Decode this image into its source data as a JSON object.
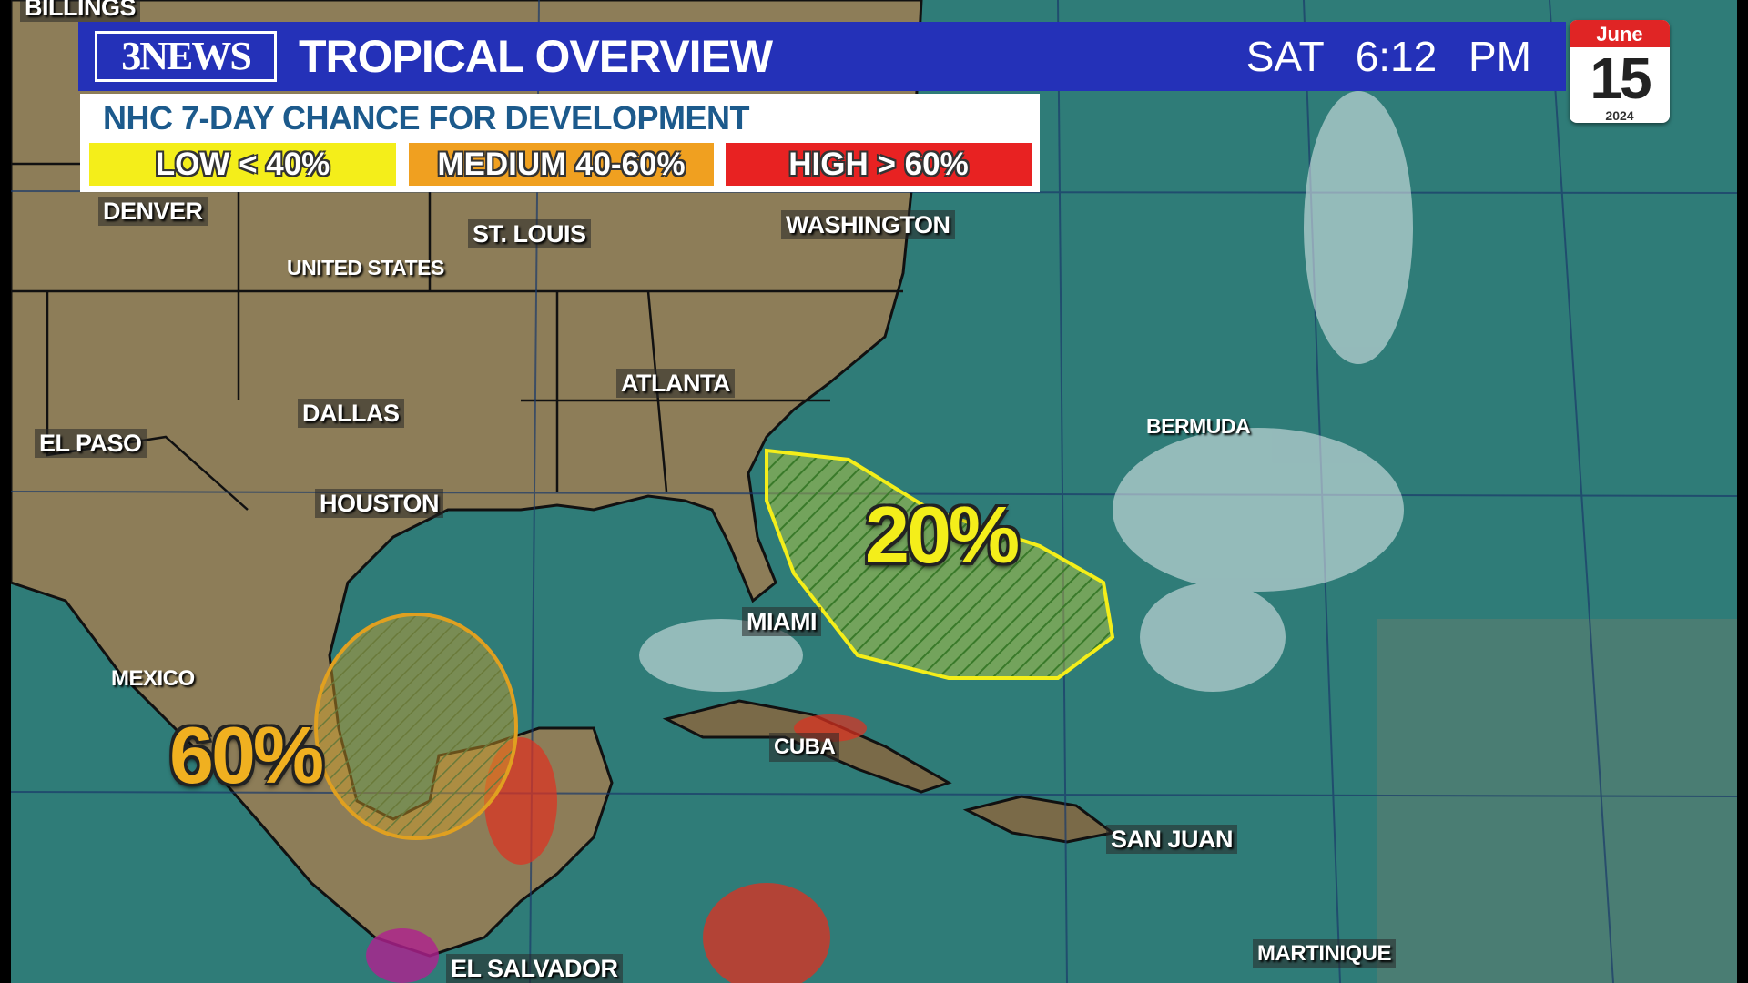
{
  "header": {
    "logo_text": "3NEWS",
    "title": "TROPICAL OVERVIEW",
    "day": "SAT",
    "time": "6:12 PM"
  },
  "calendar": {
    "month": "June",
    "day": "15",
    "year": "2024"
  },
  "legend": {
    "title": "NHC 7-DAY CHANCE FOR DEVELOPMENT",
    "items": [
      {
        "label": "LOW < 40%",
        "color": "#f4ee1a"
      },
      {
        "label": "MEDIUM 40-60%",
        "color": "#f0a020"
      },
      {
        "label": "HIGH > 60%",
        "color": "#e82222"
      }
    ]
  },
  "map": {
    "cities": [
      "BILLINGS",
      "DENVER",
      "ST. LOUIS",
      "WASHINGTON",
      "UNITED STATES",
      "ATLANTA",
      "DALLAS",
      "EL PASO",
      "HOUSTON",
      "BERMUDA",
      "MIAMI",
      "MEXICO",
      "CUBA",
      "SAN JUAN",
      "MARTINIQUE",
      "EL SALVADOR"
    ],
    "outlooks": [
      {
        "area": "Gulf of Mexico",
        "chance": "60%",
        "color": "#e0a020"
      },
      {
        "area": "Off Southeast U.S. coast",
        "chance": "20%",
        "color": "#f4ee1a"
      }
    ],
    "ocean_color": "#2f7c78",
    "land_color": "#8a7a55"
  }
}
